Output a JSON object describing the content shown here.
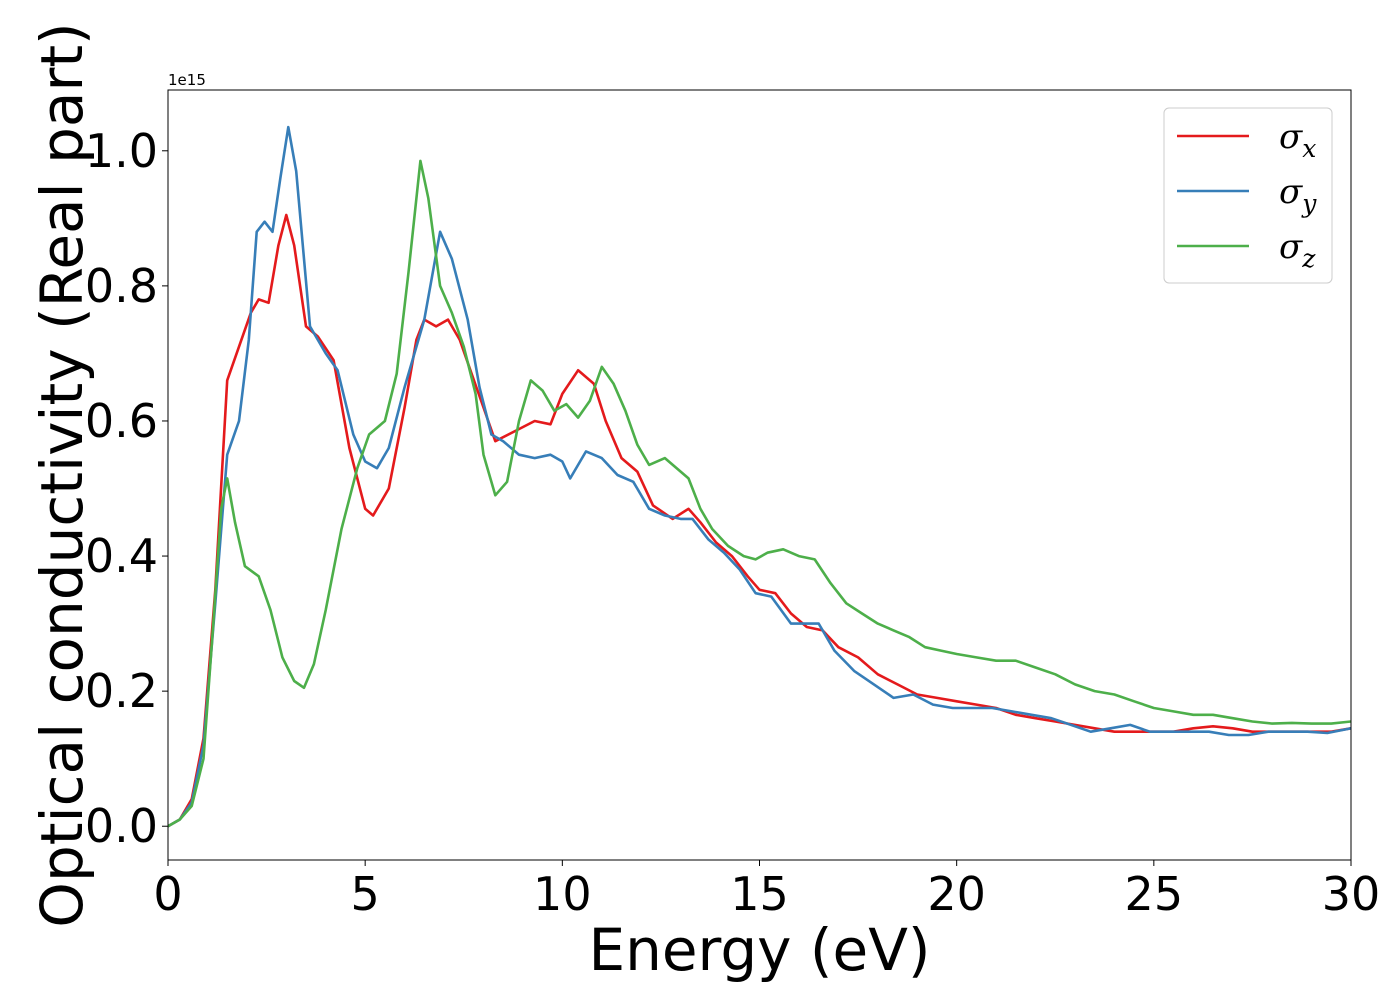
{
  "chart_data": {
    "type": "line",
    "xlabel": "Energy (eV)",
    "ylabel": "Optical conductivity (Real part)",
    "y_offset_text": "1e15",
    "xlim": [
      0,
      30
    ],
    "ylim": [
      -0.05,
      1.09
    ],
    "x_ticks": [
      0,
      5,
      10,
      15,
      20,
      25,
      30
    ],
    "x_tick_labels": [
      "0",
      "5",
      "10",
      "15",
      "20",
      "25",
      "30"
    ],
    "y_ticks": [
      0.0,
      0.2,
      0.4,
      0.6,
      0.8,
      1.0
    ],
    "y_tick_labels": [
      "0.0",
      "0.2",
      "0.4",
      "0.6",
      "0.8",
      "1.0"
    ],
    "grid": false,
    "legend_position": "top-right",
    "series": [
      {
        "name": "σx",
        "symbol": "σ",
        "subscript": "x",
        "color": "#e41a1c",
        "points": [
          [
            0,
            0
          ],
          [
            0.3,
            0.01
          ],
          [
            0.6,
            0.04
          ],
          [
            0.9,
            0.13
          ],
          [
            1.2,
            0.35
          ],
          [
            1.5,
            0.66
          ],
          [
            1.8,
            0.71
          ],
          [
            2.1,
            0.76
          ],
          [
            2.3,
            0.78
          ],
          [
            2.55,
            0.775
          ],
          [
            2.8,
            0.86
          ],
          [
            3.0,
            0.905
          ],
          [
            3.2,
            0.86
          ],
          [
            3.5,
            0.74
          ],
          [
            3.8,
            0.725
          ],
          [
            4.2,
            0.69
          ],
          [
            4.6,
            0.56
          ],
          [
            5.0,
            0.47
          ],
          [
            5.2,
            0.46
          ],
          [
            5.6,
            0.5
          ],
          [
            6.0,
            0.62
          ],
          [
            6.3,
            0.72
          ],
          [
            6.5,
            0.75
          ],
          [
            6.8,
            0.74
          ],
          [
            7.1,
            0.75
          ],
          [
            7.4,
            0.72
          ],
          [
            7.7,
            0.67
          ],
          [
            8.0,
            0.62
          ],
          [
            8.3,
            0.57
          ],
          [
            8.8,
            0.585
          ],
          [
            9.3,
            0.6
          ],
          [
            9.7,
            0.595
          ],
          [
            10.0,
            0.64
          ],
          [
            10.4,
            0.675
          ],
          [
            10.8,
            0.655
          ],
          [
            11.1,
            0.6
          ],
          [
            11.5,
            0.545
          ],
          [
            11.9,
            0.525
          ],
          [
            12.3,
            0.475
          ],
          [
            12.8,
            0.455
          ],
          [
            13.2,
            0.47
          ],
          [
            13.5,
            0.45
          ],
          [
            13.9,
            0.42
          ],
          [
            14.3,
            0.4
          ],
          [
            14.7,
            0.37
          ],
          [
            15.0,
            0.35
          ],
          [
            15.4,
            0.345
          ],
          [
            15.8,
            0.315
          ],
          [
            16.2,
            0.295
          ],
          [
            16.6,
            0.29
          ],
          [
            17.0,
            0.265
          ],
          [
            17.5,
            0.25
          ],
          [
            18.0,
            0.225
          ],
          [
            18.5,
            0.21
          ],
          [
            19.0,
            0.195
          ],
          [
            19.5,
            0.19
          ],
          [
            20.0,
            0.185
          ],
          [
            20.5,
            0.18
          ],
          [
            21.0,
            0.175
          ],
          [
            21.5,
            0.165
          ],
          [
            22.0,
            0.16
          ],
          [
            22.5,
            0.155
          ],
          [
            23.0,
            0.15
          ],
          [
            23.5,
            0.145
          ],
          [
            24.0,
            0.14
          ],
          [
            24.5,
            0.14
          ],
          [
            25.0,
            0.14
          ],
          [
            25.5,
            0.14
          ],
          [
            26.0,
            0.145
          ],
          [
            26.5,
            0.148
          ],
          [
            27.0,
            0.145
          ],
          [
            27.5,
            0.14
          ],
          [
            28.0,
            0.14
          ],
          [
            28.5,
            0.14
          ],
          [
            29.0,
            0.14
          ],
          [
            29.5,
            0.14
          ],
          [
            30.0,
            0.145
          ]
        ]
      },
      {
        "name": "σy",
        "symbol": "σ",
        "subscript": "y",
        "color": "#377eb8",
        "points": [
          [
            0,
            0
          ],
          [
            0.3,
            0.01
          ],
          [
            0.6,
            0.035
          ],
          [
            0.9,
            0.12
          ],
          [
            1.2,
            0.33
          ],
          [
            1.5,
            0.55
          ],
          [
            1.8,
            0.6
          ],
          [
            2.05,
            0.72
          ],
          [
            2.25,
            0.88
          ],
          [
            2.45,
            0.895
          ],
          [
            2.65,
            0.88
          ],
          [
            2.85,
            0.96
          ],
          [
            3.05,
            1.035
          ],
          [
            3.25,
            0.97
          ],
          [
            3.6,
            0.74
          ],
          [
            4.0,
            0.7
          ],
          [
            4.3,
            0.675
          ],
          [
            4.7,
            0.58
          ],
          [
            5.0,
            0.54
          ],
          [
            5.3,
            0.53
          ],
          [
            5.6,
            0.56
          ],
          [
            6.0,
            0.65
          ],
          [
            6.5,
            0.75
          ],
          [
            6.9,
            0.88
          ],
          [
            7.2,
            0.84
          ],
          [
            7.6,
            0.75
          ],
          [
            7.9,
            0.65
          ],
          [
            8.2,
            0.58
          ],
          [
            8.5,
            0.57
          ],
          [
            8.9,
            0.55
          ],
          [
            9.3,
            0.545
          ],
          [
            9.7,
            0.55
          ],
          [
            10.0,
            0.54
          ],
          [
            10.2,
            0.515
          ],
          [
            10.6,
            0.555
          ],
          [
            11.0,
            0.545
          ],
          [
            11.4,
            0.52
          ],
          [
            11.8,
            0.51
          ],
          [
            12.2,
            0.47
          ],
          [
            12.6,
            0.46
          ],
          [
            13.0,
            0.455
          ],
          [
            13.3,
            0.455
          ],
          [
            13.7,
            0.425
          ],
          [
            14.1,
            0.405
          ],
          [
            14.5,
            0.38
          ],
          [
            14.9,
            0.345
          ],
          [
            15.3,
            0.34
          ],
          [
            15.8,
            0.3
          ],
          [
            16.2,
            0.3
          ],
          [
            16.5,
            0.3
          ],
          [
            16.9,
            0.26
          ],
          [
            17.4,
            0.23
          ],
          [
            17.9,
            0.21
          ],
          [
            18.4,
            0.19
          ],
          [
            18.9,
            0.195
          ],
          [
            19.4,
            0.18
          ],
          [
            19.9,
            0.175
          ],
          [
            20.4,
            0.175
          ],
          [
            20.9,
            0.175
          ],
          [
            21.4,
            0.17
          ],
          [
            21.9,
            0.165
          ],
          [
            22.4,
            0.16
          ],
          [
            22.9,
            0.15
          ],
          [
            23.4,
            0.14
          ],
          [
            23.9,
            0.145
          ],
          [
            24.4,
            0.15
          ],
          [
            24.9,
            0.14
          ],
          [
            25.4,
            0.14
          ],
          [
            25.9,
            0.14
          ],
          [
            26.4,
            0.14
          ],
          [
            26.9,
            0.135
          ],
          [
            27.4,
            0.135
          ],
          [
            27.9,
            0.14
          ],
          [
            28.4,
            0.14
          ],
          [
            28.9,
            0.14
          ],
          [
            29.4,
            0.138
          ],
          [
            30.0,
            0.145
          ]
        ]
      },
      {
        "name": "σz",
        "symbol": "σ",
        "subscript": "z",
        "color": "#4daf4a",
        "points": [
          [
            0,
            0
          ],
          [
            0.3,
            0.01
          ],
          [
            0.6,
            0.03
          ],
          [
            0.9,
            0.1
          ],
          [
            1.15,
            0.3
          ],
          [
            1.35,
            0.47
          ],
          [
            1.5,
            0.515
          ],
          [
            1.7,
            0.45
          ],
          [
            1.95,
            0.385
          ],
          [
            2.3,
            0.37
          ],
          [
            2.6,
            0.32
          ],
          [
            2.9,
            0.25
          ],
          [
            3.2,
            0.215
          ],
          [
            3.45,
            0.205
          ],
          [
            3.7,
            0.24
          ],
          [
            4.0,
            0.32
          ],
          [
            4.4,
            0.44
          ],
          [
            4.8,
            0.53
          ],
          [
            5.1,
            0.58
          ],
          [
            5.5,
            0.6
          ],
          [
            5.8,
            0.67
          ],
          [
            6.1,
            0.82
          ],
          [
            6.4,
            0.985
          ],
          [
            6.6,
            0.93
          ],
          [
            6.9,
            0.8
          ],
          [
            7.2,
            0.76
          ],
          [
            7.5,
            0.71
          ],
          [
            7.8,
            0.64
          ],
          [
            8.0,
            0.55
          ],
          [
            8.3,
            0.49
          ],
          [
            8.6,
            0.51
          ],
          [
            8.9,
            0.6
          ],
          [
            9.2,
            0.66
          ],
          [
            9.5,
            0.645
          ],
          [
            9.8,
            0.615
          ],
          [
            10.1,
            0.625
          ],
          [
            10.4,
            0.605
          ],
          [
            10.7,
            0.63
          ],
          [
            11.0,
            0.68
          ],
          [
            11.3,
            0.655
          ],
          [
            11.6,
            0.615
          ],
          [
            11.9,
            0.565
          ],
          [
            12.2,
            0.535
          ],
          [
            12.6,
            0.545
          ],
          [
            12.9,
            0.53
          ],
          [
            13.2,
            0.515
          ],
          [
            13.5,
            0.47
          ],
          [
            13.8,
            0.44
          ],
          [
            14.2,
            0.415
          ],
          [
            14.6,
            0.4
          ],
          [
            14.9,
            0.395
          ],
          [
            15.2,
            0.405
          ],
          [
            15.6,
            0.41
          ],
          [
            16.0,
            0.4
          ],
          [
            16.4,
            0.395
          ],
          [
            16.8,
            0.36
          ],
          [
            17.2,
            0.33
          ],
          [
            17.6,
            0.315
          ],
          [
            18.0,
            0.3
          ],
          [
            18.4,
            0.29
          ],
          [
            18.8,
            0.28
          ],
          [
            19.2,
            0.265
          ],
          [
            19.6,
            0.26
          ],
          [
            20.0,
            0.255
          ],
          [
            20.5,
            0.25
          ],
          [
            21.0,
            0.245
          ],
          [
            21.5,
            0.245
          ],
          [
            22.0,
            0.235
          ],
          [
            22.5,
            0.225
          ],
          [
            23.0,
            0.21
          ],
          [
            23.5,
            0.2
          ],
          [
            24.0,
            0.195
          ],
          [
            24.5,
            0.185
          ],
          [
            25.0,
            0.175
          ],
          [
            25.5,
            0.17
          ],
          [
            26.0,
            0.165
          ],
          [
            26.5,
            0.165
          ],
          [
            27.0,
            0.16
          ],
          [
            27.5,
            0.155
          ],
          [
            28.0,
            0.152
          ],
          [
            28.5,
            0.153
          ],
          [
            29.0,
            0.152
          ],
          [
            29.5,
            0.152
          ],
          [
            30.0,
            0.155
          ]
        ]
      }
    ]
  }
}
